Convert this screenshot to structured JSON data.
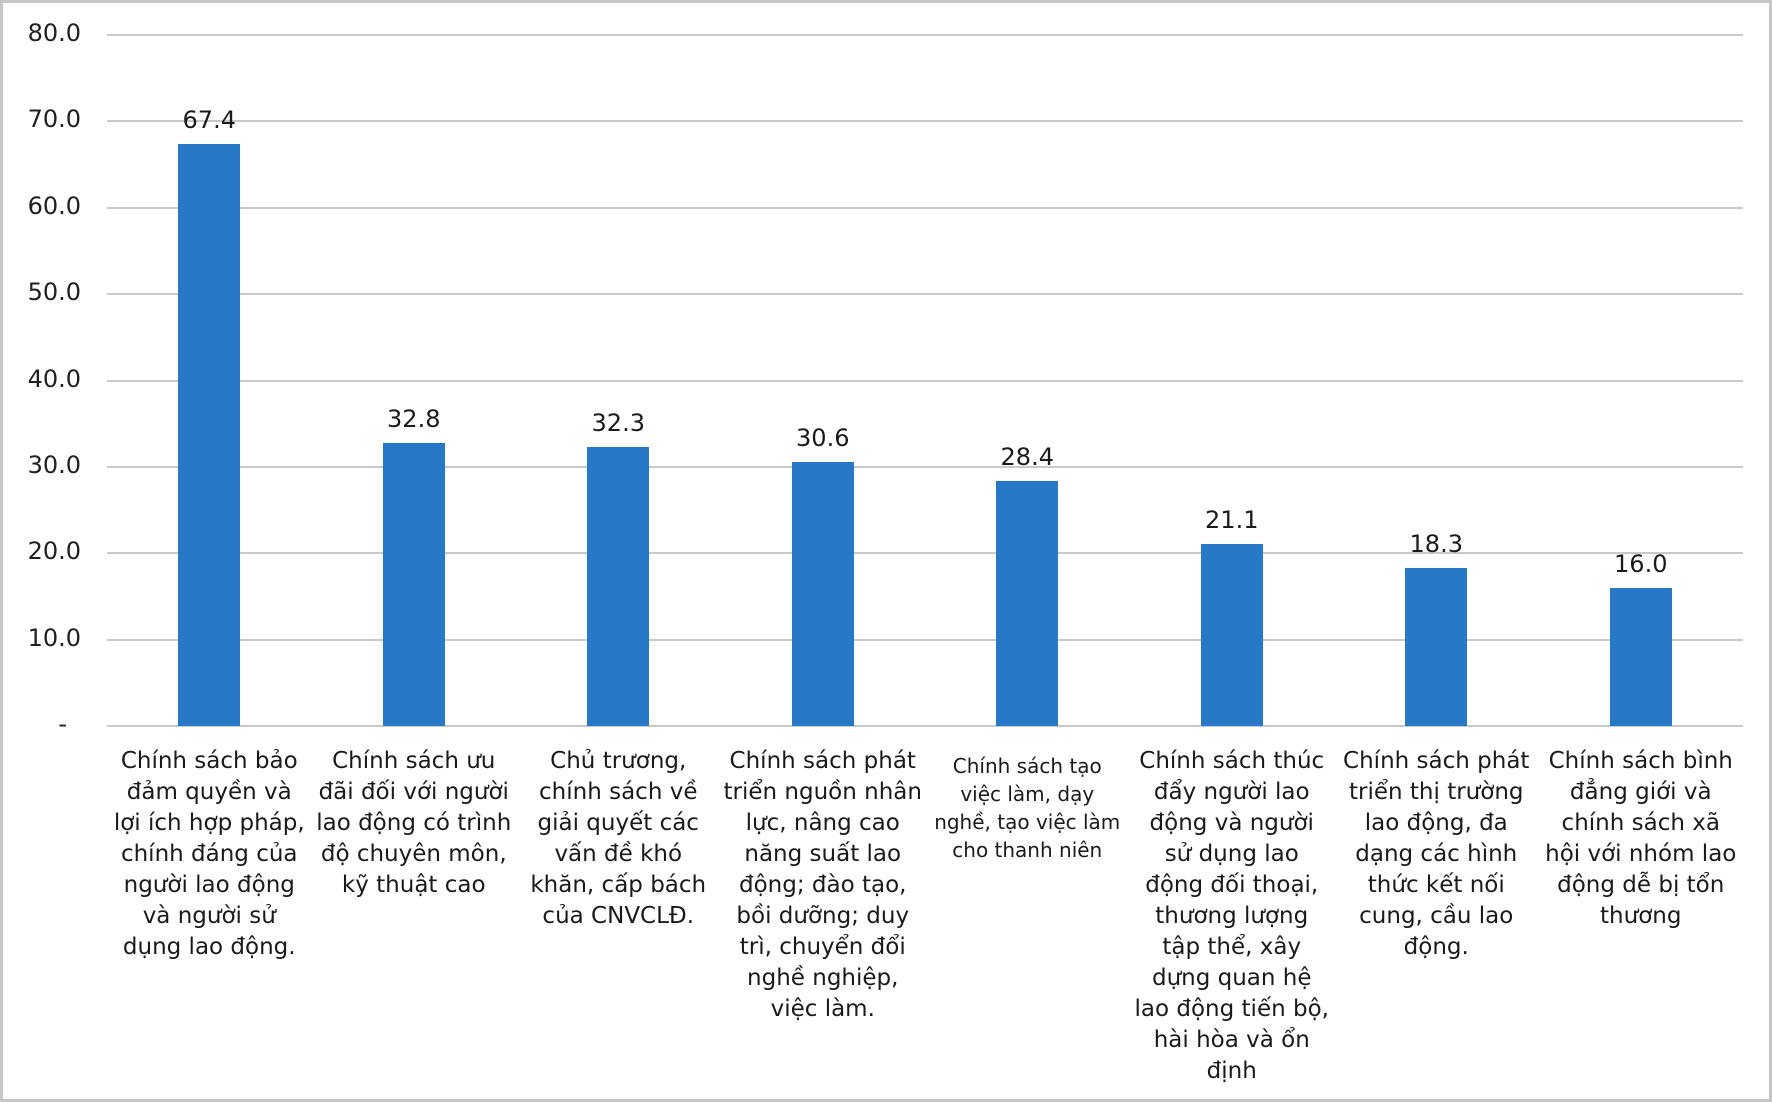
{
  "chart_data": {
    "type": "bar",
    "title": "",
    "xlabel": "",
    "ylabel": "",
    "ylim": [
      0,
      80
    ],
    "grid": true,
    "legend": false,
    "bar_color": "#2878C8",
    "gridline_color": "#C9C9C9",
    "axis_text_color": "#202020",
    "background_color": "#FFFFFF",
    "frame_border_color": "#C6C6C6",
    "categories": [
      "Chính sách bảo\nđảm quyền và\nlợi ích hợp pháp,\nchính đáng của\nngười lao động\nvà người sử\ndụng lao động.",
      "Chính sách ưu\nđãi đối với người\nlao động có trình\nđộ chuyên môn,\nkỹ thuật cao",
      "Chủ trương,\nchính sách về\ngiải quyết các\nvấn đề khó\nkhăn, cấp bách\ncủa CNVCLĐ.",
      "Chính sách phát\ntriển nguồn nhân\nlực, nâng cao\nnăng suất lao\nđộng; đào tạo,\nbồi dưỡng; duy\ntrì, chuyển đổi\nnghề nghiệp,\nviệc làm.",
      "Chính sách tạo\nviệc làm, dạy\nnghề, tạo việc làm\ncho thanh niên",
      "Chính sách thúc\nđẩy người lao\nđộng và người\nsử dụng lao\nđộng đối thoại,\nthương lượng\ntập thể, xây\ndựng quan hệ\nlao động tiến bộ,\nhài hòa và ổn\nđịnh",
      "Chính sách phát\ntriển thị trường\nlao động, đa\ndạng các hình\nthức kết nối\ncung, cầu lao\nđộng.",
      "Chính sách bình\nđẳng giới và\nchính sách xã\nhội với nhóm lao\nđộng dễ bị tổn\nthương"
    ],
    "values": [
      67.4,
      32.8,
      32.3,
      30.6,
      28.4,
      21.1,
      18.3,
      16.0
    ],
    "value_labels": [
      "67.4",
      "32.8",
      "32.3",
      "30.6",
      "28.4",
      "21.1",
      "18.3",
      "16.0"
    ],
    "y_ticks": [
      {
        "label": "80.0",
        "value": 80
      },
      {
        "label": "70.0",
        "value": 70
      },
      {
        "label": "60.0",
        "value": 60
      },
      {
        "label": "50.0",
        "value": 50
      },
      {
        "label": "40.0",
        "value": 40
      },
      {
        "label": "30.0",
        "value": 30
      },
      {
        "label": "20.0",
        "value": 20
      },
      {
        "label": "10.0",
        "value": 10
      },
      {
        "label": "-",
        "value": 0
      }
    ]
  }
}
